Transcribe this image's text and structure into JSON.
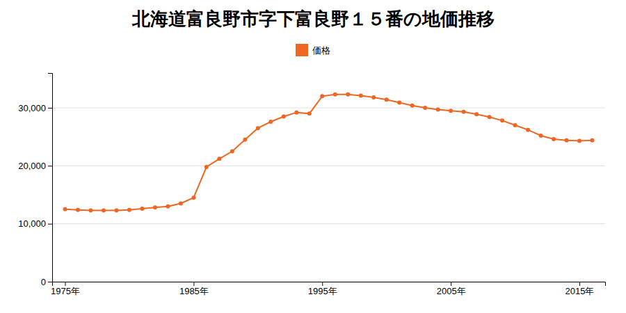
{
  "chart_data": {
    "type": "line",
    "title": "北海道富良野市字下富良野１５番の地価推移",
    "x": [
      1975,
      1976,
      1977,
      1978,
      1979,
      1980,
      1981,
      1982,
      1983,
      1984,
      1985,
      1986,
      1987,
      1988,
      1989,
      1990,
      1991,
      1992,
      1993,
      1994,
      1995,
      1996,
      1997,
      1998,
      1999,
      2000,
      2001,
      2002,
      2003,
      2004,
      2005,
      2006,
      2007,
      2008,
      2009,
      2010,
      2011,
      2012,
      2013,
      2014,
      2015,
      2016
    ],
    "series": [
      {
        "name": "価格",
        "color": "#EE6622",
        "marker": "circle",
        "values": [
          12500,
          12400,
          12300,
          12300,
          12300,
          12400,
          12600,
          12800,
          13000,
          13500,
          14500,
          19800,
          21200,
          22500,
          24500,
          26500,
          27600,
          28500,
          29200,
          29000,
          32000,
          32300,
          32300,
          32100,
          31800,
          31400,
          30900,
          30400,
          30000,
          29700,
          29500,
          29300,
          28900,
          28400,
          27800,
          27000,
          26200,
          25200,
          24600,
          24400,
          24300,
          24400
        ]
      }
    ],
    "xlim": [
      1974,
      2017
    ],
    "xticks": [
      {
        "value": 1975,
        "label": "1975年"
      },
      {
        "value": 1985,
        "label": "1985年"
      },
      {
        "value": 1995,
        "label": "1995年"
      },
      {
        "value": 2005,
        "label": "2005年"
      },
      {
        "value": 2015,
        "label": "2015年"
      }
    ],
    "ylim": [
      0,
      36000
    ],
    "yticks": [
      0,
      {
        "value": 10000,
        "label": "10,000"
      },
      {
        "value": 20000,
        "label": "20,000"
      },
      {
        "value": 30000,
        "label": "30,000"
      }
    ],
    "grid": true,
    "legend": "top"
  }
}
